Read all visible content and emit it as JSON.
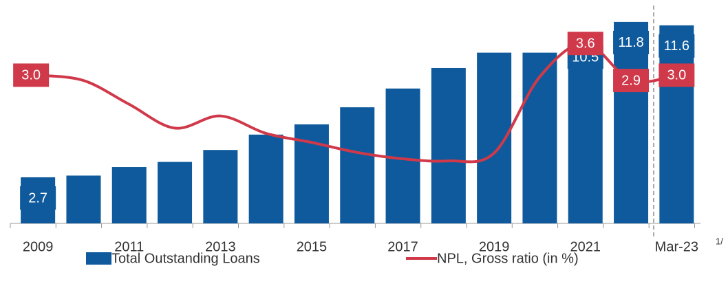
{
  "chart_data": {
    "type": "bar",
    "categories": [
      "2009",
      null,
      "2011",
      null,
      "2013",
      null,
      "2015",
      null,
      "2017",
      null,
      "2019",
      null,
      "2021",
      null,
      "Mar-23"
    ],
    "series": [
      {
        "name": "Total Outstanding Loans",
        "type": "bar",
        "color": "#0e5a9c",
        "values": [
          2.7,
          2.8,
          3.3,
          3.6,
          4.3,
          5.2,
          5.8,
          6.8,
          7.9,
          9.1,
          10.0,
          10.0,
          10.5,
          11.8,
          11.6
        ],
        "value_labels": [
          "2.7",
          null,
          null,
          null,
          null,
          null,
          null,
          null,
          null,
          null,
          null,
          null,
          "10.5",
          "11.8",
          "11.6"
        ]
      },
      {
        "name": "NPL, Gross ratio (in %)",
        "type": "line",
        "axis": "y2",
        "color": "#d0394a",
        "values": [
          3.0,
          2.9,
          2.45,
          2.0,
          2.23,
          1.9,
          1.73,
          1.54,
          1.42,
          1.38,
          1.53,
          2.97,
          3.6,
          2.9,
          3.0
        ],
        "value_labels": [
          "3.0",
          null,
          null,
          null,
          null,
          null,
          null,
          null,
          null,
          null,
          null,
          null,
          "3.6",
          "2.9",
          "3.0"
        ]
      }
    ],
    "ylim": [
      0,
      12.4
    ],
    "y2lim": [
      0.2,
      4.2
    ],
    "footnote": "1/"
  }
}
